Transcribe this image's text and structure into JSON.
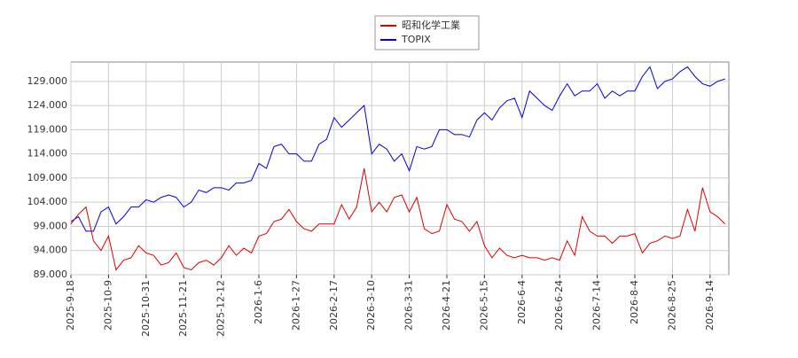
{
  "chart_data": {
    "type": "line",
    "categories": [
      "2025-9-18",
      null,
      null,
      null,
      null,
      "2025-10-9",
      null,
      null,
      null,
      null,
      "2025-10-31",
      null,
      null,
      null,
      null,
      "2025-11-21",
      null,
      null,
      null,
      null,
      "2025-12-12",
      null,
      null,
      null,
      null,
      "2026-1-6",
      null,
      null,
      null,
      null,
      "2026-1-27",
      null,
      null,
      null,
      null,
      "2026-2-17",
      null,
      null,
      null,
      null,
      "2026-3-10",
      null,
      null,
      null,
      null,
      "2026-3-31",
      null,
      null,
      null,
      null,
      "2026-4-21",
      null,
      null,
      null,
      null,
      "2026-5-15",
      null,
      null,
      null,
      null,
      "2026-6-4",
      null,
      null,
      null,
      null,
      "2026-6-24",
      null,
      null,
      null,
      null,
      "2026-7-14",
      null,
      null,
      null,
      null,
      "2026-8-4",
      null,
      null,
      null,
      null,
      "2026-8-25",
      null,
      null,
      null,
      null,
      "2026-9-14",
      null,
      null
    ],
    "series": [
      {
        "name": "昭和化学工業",
        "color": "#dd0000",
        "values": [
          99.5,
          101.5,
          103,
          96,
          94,
          97,
          90,
          92,
          92.5,
          95,
          93.5,
          93,
          91,
          91.5,
          93.5,
          90.5,
          90,
          91.5,
          92,
          91,
          92.5,
          95,
          93,
          94.5,
          93.5,
          97,
          97.5,
          100,
          100.5,
          102.5,
          100,
          98.5,
          98,
          99.5,
          99.5,
          99.5,
          103.5,
          100.5,
          103,
          111,
          102,
          104,
          102,
          105,
          105.5,
          102,
          105,
          98.5,
          97.5,
          98,
          103.5,
          100.5,
          100,
          98,
          100,
          95,
          92.5,
          94.5,
          93,
          92.5,
          93,
          92.5,
          92.5,
          92,
          92.5,
          92,
          96,
          93,
          101,
          98,
          97,
          97,
          95.5,
          97,
          97,
          97.5,
          93.5,
          95.5,
          96,
          97,
          96.5,
          97,
          102.5,
          98,
          107,
          102,
          101,
          99.5
        ]
      },
      {
        "name": "TOPIX",
        "color": "#0000dd",
        "values": [
          100,
          101,
          98,
          98,
          102,
          103,
          99.5,
          101,
          103,
          103,
          104.5,
          104,
          105,
          105.5,
          105,
          103,
          104,
          106.5,
          106,
          107,
          107,
          106.5,
          108,
          108,
          108.5,
          112,
          111,
          115.5,
          116,
          114,
          114,
          112.5,
          112.5,
          116,
          117,
          121.5,
          119.5,
          121,
          122.5,
          124,
          114,
          116,
          115,
          112.5,
          114,
          110.5,
          115.5,
          115,
          115.5,
          119,
          119,
          118,
          118,
          117.5,
          121,
          122.5,
          121,
          123.5,
          125,
          125.5,
          121.5,
          127,
          125.5,
          124,
          123,
          126,
          128.5,
          126,
          127,
          127,
          128.5,
          125.5,
          127,
          126,
          127,
          127,
          130,
          132,
          127.5,
          129,
          129.5,
          131,
          132,
          130,
          128.5,
          128,
          129,
          129.5
        ]
      }
    ],
    "ylim": [
      89,
      133
    ],
    "yticks": [
      {
        "value": 89,
        "label": "89.000"
      },
      {
        "value": 94,
        "label": "94.000"
      },
      {
        "value": 99,
        "label": "99.000"
      },
      {
        "value": 104,
        "label": "104.000"
      },
      {
        "value": 109,
        "label": "109.000"
      },
      {
        "value": 114,
        "label": "114.000"
      },
      {
        "value": 119,
        "label": "119.000"
      },
      {
        "value": 124,
        "label": "124.000"
      },
      {
        "value": 129,
        "label": "129.000"
      }
    ],
    "grid": true,
    "legend": "top"
  }
}
